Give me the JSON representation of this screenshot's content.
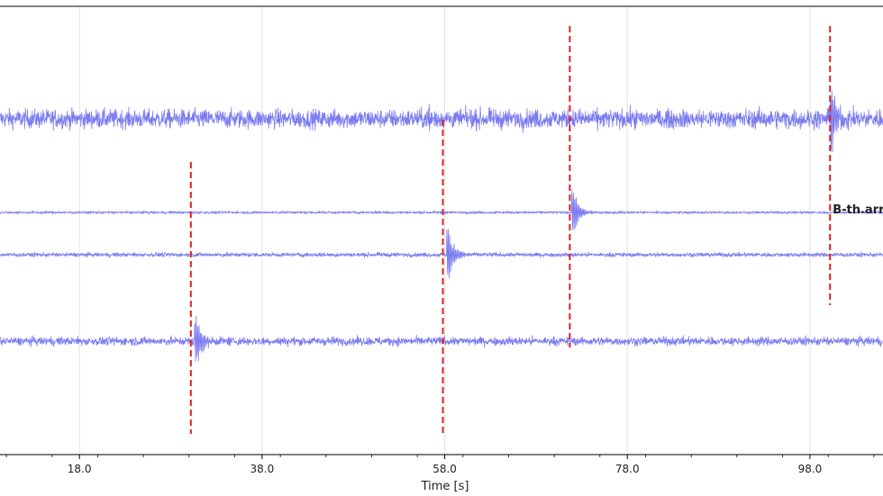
{
  "chart_data": {
    "type": "line",
    "title": "",
    "xlabel": "Time [s]",
    "ylabel": "",
    "xlim": [
      9.3,
      106.0
    ],
    "x_ticks": [
      {
        "value": 18.0,
        "label": "18.0"
      },
      {
        "value": 38.0,
        "label": "38.0"
      },
      {
        "value": 58.0,
        "label": "58.0"
      },
      {
        "value": 78.0,
        "label": "78.0"
      },
      {
        "value": 98.0,
        "label": "98.0"
      }
    ],
    "grid": "vertical",
    "colors": {
      "trace": "#7b7bf0",
      "pick": "#dd2222",
      "grid": "#e3e3e3",
      "axis": "#000000"
    },
    "series": [
      {
        "offset": 0,
        "noise": 1.0,
        "event_time": 100.2,
        "event_amp": 2.6,
        "spike_time": 56.3,
        "spike_amp": 1.8
      },
      {
        "offset": 1,
        "noise": 0.12,
        "event_time": 71.9,
        "event_amp": 1.9
      },
      {
        "offset": 2,
        "noise": 0.22,
        "event_time": 58.2,
        "event_amp": 2.2
      },
      {
        "offset": 3,
        "noise": 0.45,
        "event_time": 30.6,
        "event_amp": 2.1
      }
    ],
    "picks": [
      {
        "time": 100.2,
        "from_trace": 0,
        "to_trace": 1
      },
      {
        "time": 71.7,
        "from_trace": 0,
        "to_trace": 2
      },
      {
        "time": 57.8,
        "from_trace": 1,
        "to_trace": 3
      },
      {
        "time": 30.2,
        "from_trace": 2,
        "to_trace": 3
      }
    ],
    "annotations": [
      {
        "text": "B-th.arr",
        "time": 100.2,
        "trace": 1
      }
    ]
  }
}
